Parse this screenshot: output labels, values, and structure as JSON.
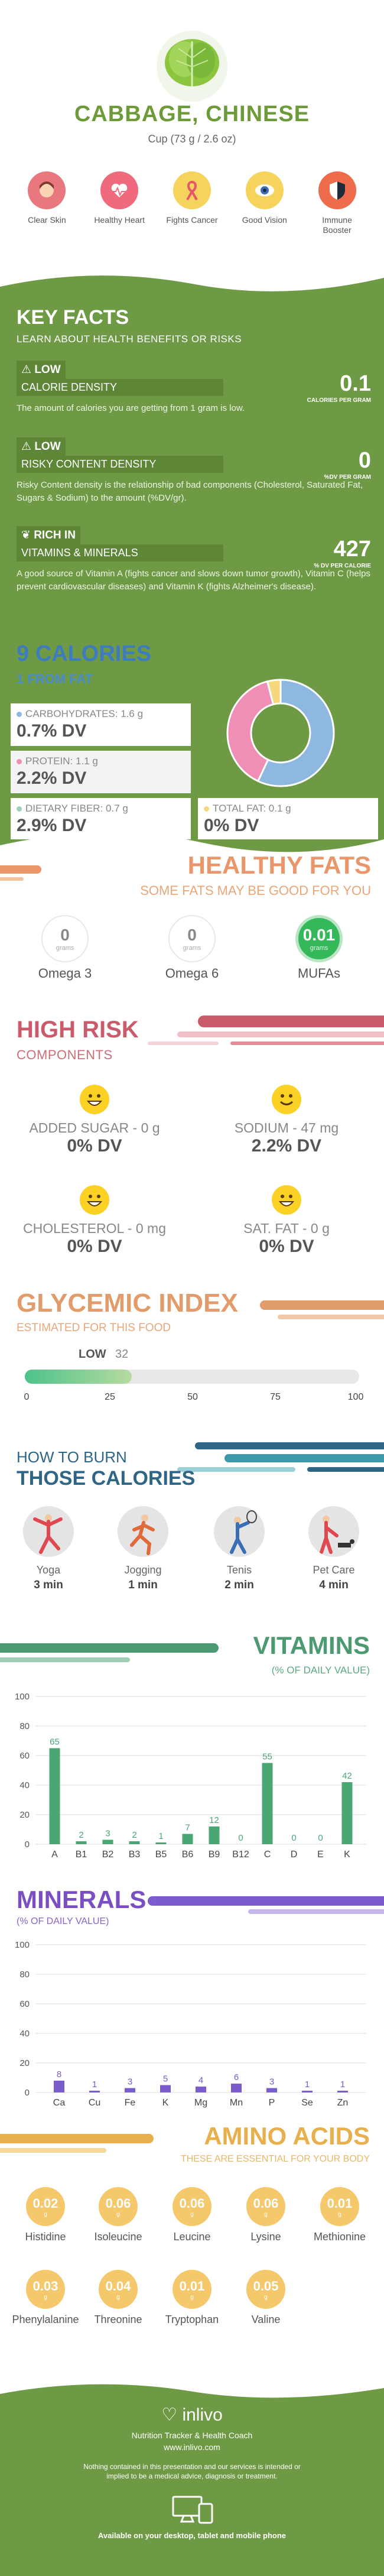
{
  "header": {
    "title": "CABBAGE, CHINESE",
    "serving": "Cup (73 g / 2.6 oz)",
    "benefits": [
      {
        "label": "Clear Skin",
        "icon": "face-icon",
        "color": "#e8777f"
      },
      {
        "label": "Healthy Heart",
        "icon": "heart-icon",
        "color": "#f06a7d"
      },
      {
        "label": "Fights Cancer",
        "icon": "ribbon-icon",
        "color": "#f5d35c"
      },
      {
        "label": "Good Vision",
        "icon": "eye-icon",
        "color": "#f5d35c"
      },
      {
        "label": "Immune Booster",
        "icon": "shield-icon",
        "color": "#ee6b4c"
      }
    ]
  },
  "key_facts": {
    "title": "KEY FACTS",
    "subtitle": "LEARN ABOUT HEALTH BENEFITS OR RISKS",
    "facts": [
      {
        "level": "LOW",
        "name": "CALORIE DENSITY",
        "value": "0.1",
        "unit": "CALORIES PER GRAM",
        "desc": "The amount of calories you are getting from 1 gram is low."
      },
      {
        "level": "LOW",
        "name": "RISKY CONTENT DENSITY",
        "value": "0",
        "unit": "%DV PER GRAM",
        "desc": "Risky Content density is the relationship of bad components (Cholesterol, Saturated Fat, Sugars & Sodium) to the amount (%DV/gr)."
      },
      {
        "level": "RICH IN",
        "name": "VITAMINS & MINERALS",
        "value": "427",
        "unit": "% DV PER CALORIE",
        "desc": "A good source of Vitamin A (fights cancer and slows down tumor growth), Vitamin C (helps prevent cardiovascular diseases) and Vitamin K (fights Alzheimer's disease)."
      }
    ]
  },
  "calories": {
    "title": "9 CALORIES",
    "subtitle": "1 FROM FAT",
    "macros": [
      {
        "label": "CARBOHYDRATES: 1.6 g",
        "dv": "0.7% DV",
        "color": "#8fb8e0"
      },
      {
        "label": "PROTEIN: 1.1 g",
        "dv": "2.2% DV",
        "color": "#f08fb5"
      },
      {
        "label": "DIETARY FIBER: 0.7 g",
        "dv": "2.9% DV",
        "color": "#9fd0b6"
      },
      {
        "label": "TOTAL FAT: 0.1 g",
        "dv": "0% DV",
        "color": "#f6d77c"
      }
    ],
    "pie": {
      "carbs": 0.57,
      "protein": 0.39,
      "fat": 0.04
    }
  },
  "healthy_fats": {
    "title": "HEALTHY FATS",
    "subtitle": "SOME FATS MAY BE GOOD FOR YOU",
    "items": [
      {
        "name": "Omega 3",
        "value": "0",
        "unit": "grams"
      },
      {
        "name": "Omega 6",
        "value": "0",
        "unit": "grams"
      },
      {
        "name": "MUFAs",
        "value": "0.01",
        "unit": "grams"
      }
    ]
  },
  "high_risk": {
    "title": "HIGH RISK",
    "subtitle": "COMPONENTS",
    "items": [
      {
        "label": "ADDED SUGAR - 0 g",
        "dv": "0% DV"
      },
      {
        "label": "SODIUM - 47 mg",
        "dv": "2.2% DV"
      },
      {
        "label": "CHOLESTEROL - 0 mg",
        "dv": "0% DV"
      },
      {
        "label": "SAT. FAT - 0 g",
        "dv": "0% DV"
      }
    ]
  },
  "glycemic": {
    "title": "GLYCEMIC INDEX",
    "subtitle": "ESTIMATED FOR THIS FOOD",
    "level": "LOW",
    "value": "32",
    "fraction": 0.32,
    "ticks": [
      "0",
      "25",
      "50",
      "75",
      "100"
    ]
  },
  "burn": {
    "title1": "HOW TO BURN",
    "title2": "THOSE CALORIES",
    "activities": [
      {
        "name": "Yoga",
        "time": "3 min",
        "icon": "yoga-icon"
      },
      {
        "name": "Jogging",
        "time": "1 min",
        "icon": "jogging-icon"
      },
      {
        "name": "Tenis",
        "time": "2 min",
        "icon": "tennis-icon"
      },
      {
        "name": "Pet Care",
        "time": "4 min",
        "icon": "dog-walking-icon"
      }
    ]
  },
  "vitamins": {
    "title": "VITAMINS",
    "subtitle": "(% OF DAILY VALUE)",
    "color": "#4aa673"
  },
  "minerals": {
    "title": "MINERALS",
    "subtitle": "(% OF DAILY VALUE)",
    "color": "#7a5ccc"
  },
  "chart_data": [
    {
      "type": "bar",
      "title": "VITAMINS",
      "categories": [
        "A",
        "B1",
        "B2",
        "B3",
        "B5",
        "B6",
        "B9",
        "B12",
        "C",
        "D",
        "E",
        "K"
      ],
      "values": [
        65,
        2,
        3,
        2,
        1,
        7,
        12,
        0,
        55,
        0,
        0,
        42
      ],
      "ylim": [
        0,
        100
      ],
      "yticks": [
        "0",
        "20",
        "40",
        "60",
        "80",
        "100"
      ],
      "grid": true
    },
    {
      "type": "bar",
      "title": "MINERALS",
      "categories": [
        "Ca",
        "Cu",
        "Fe",
        "K",
        "Mg",
        "Mn",
        "P",
        "Se",
        "Zn"
      ],
      "values": [
        8,
        1,
        3,
        5,
        4,
        6,
        3,
        1,
        1
      ],
      "ylim": [
        0,
        100
      ],
      "yticks": [
        "0",
        "20",
        "40",
        "60",
        "80",
        "100"
      ],
      "grid": true
    }
  ],
  "amino": {
    "title": "AMINO ACIDS",
    "subtitle": "THESE ARE ESSENTIAL FOR YOUR BODY",
    "items": [
      {
        "name": "Histidine",
        "value": "0.02",
        "unit": "g"
      },
      {
        "name": "Isoleucine",
        "value": "0.06",
        "unit": "g"
      },
      {
        "name": "Leucine",
        "value": "0.06",
        "unit": "g"
      },
      {
        "name": "Lysine",
        "value": "0.06",
        "unit": "g"
      },
      {
        "name": "Methionine",
        "value": "0.01",
        "unit": "g"
      },
      {
        "name": "Phenylalanine",
        "value": "0.03",
        "unit": "g"
      },
      {
        "name": "Threonine",
        "value": "0.04",
        "unit": "g"
      },
      {
        "name": "Tryptophan",
        "value": "0.01",
        "unit": "g"
      },
      {
        "name": "Valine",
        "value": "0.05",
        "unit": "g"
      }
    ]
  },
  "footer": {
    "brand": "inlivo",
    "tagline": "Nutrition Tracker & Health Coach",
    "url": "www.inlivo.com",
    "disclaimer": "Nothing contained in this presentation and our services is intended or implied to be a medical advice, diagnosis or treatment.",
    "available": "Available on your desktop, tablet and mobile phone"
  }
}
